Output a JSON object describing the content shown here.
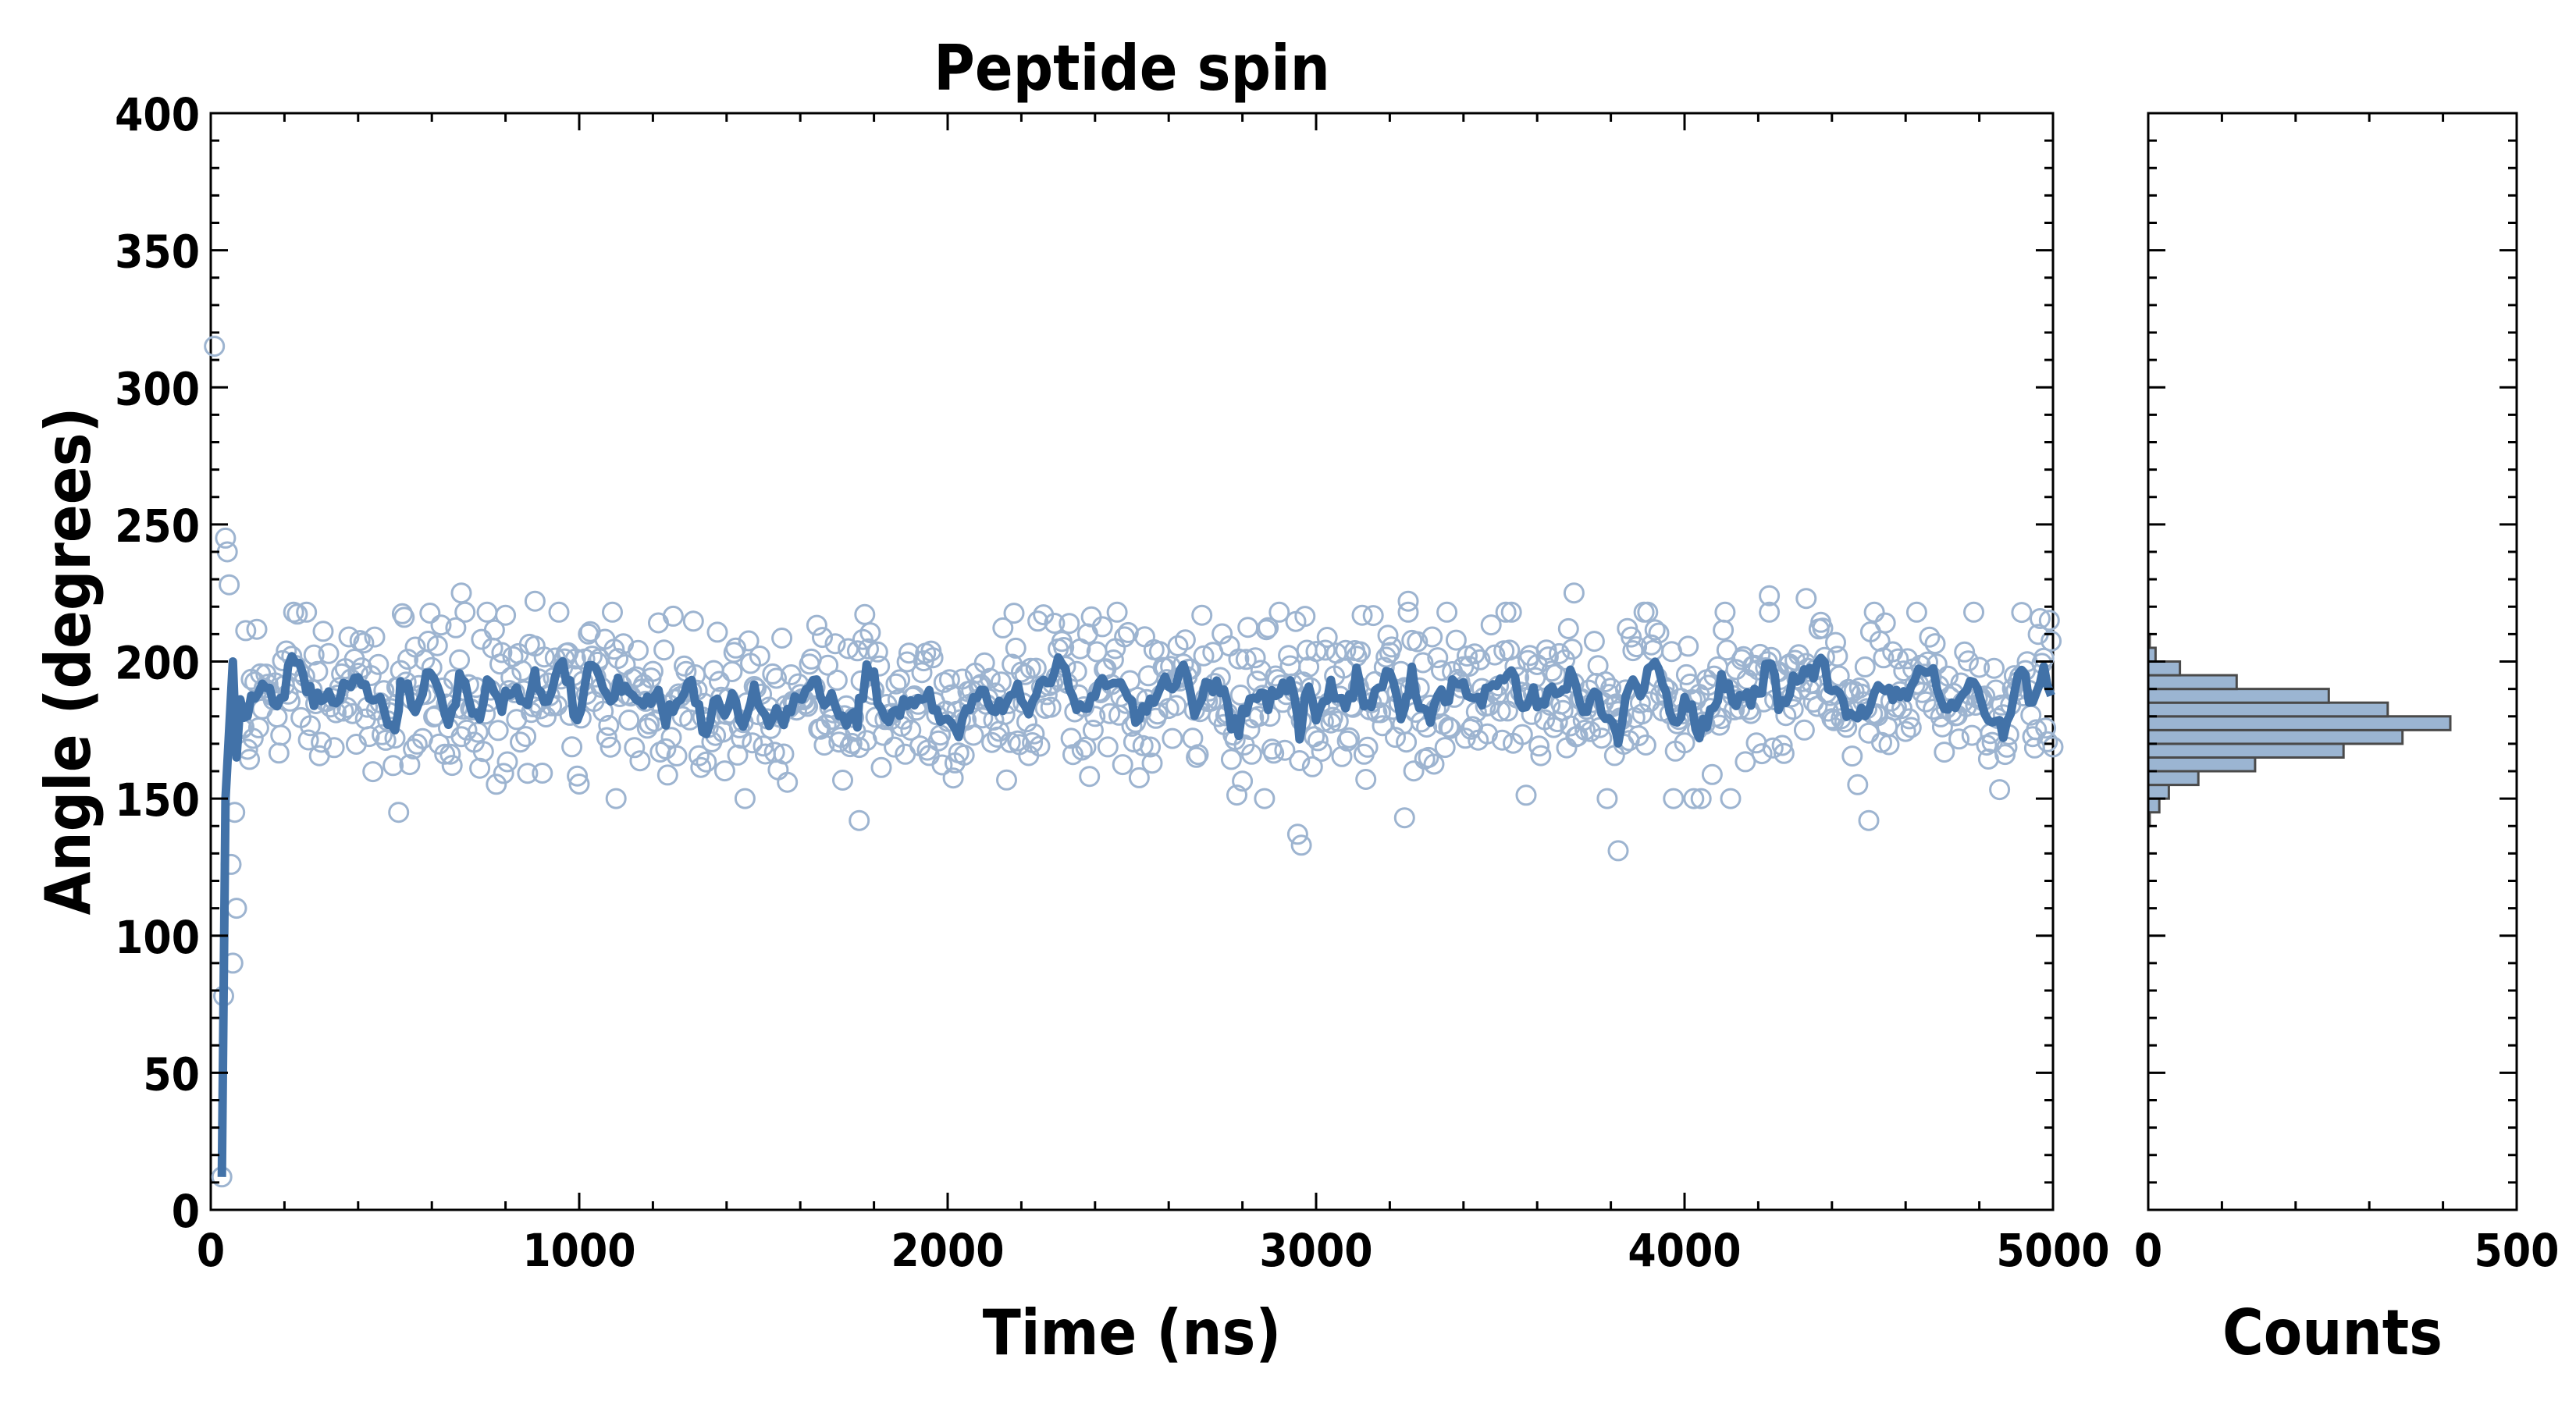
{
  "colors": {
    "accent": "#4272a8",
    "scatter": "#9db4d0",
    "hist_fill": "#9bb5d2",
    "hist_edge": "#4a4a4a"
  },
  "chart_data": [
    {
      "type": "scatter",
      "title": "Peptide spin",
      "xlabel": "Time (ns)",
      "ylabel": "Angle (degrees)",
      "xlim": [
        0,
        5000
      ],
      "ylim": [
        0,
        400
      ],
      "x_ticks": [
        "0",
        "1000",
        "2000",
        "3000",
        "4000",
        "5000"
      ],
      "y_ticks": [
        "0",
        "50",
        "100",
        "150",
        "200",
        "250",
        "300",
        "350",
        "400"
      ],
      "grid": false,
      "description_series": [
        {
          "kind": "scatter",
          "marker": "open-circle",
          "summary": {
            "mean": 187,
            "spread": 15,
            "x_step": 5,
            "x_range": [
              0,
              5000
            ]
          }
        },
        {
          "kind": "line",
          "smoothed": true
        }
      ],
      "initial_points": [
        {
          "x": 10,
          "y": 315
        },
        {
          "x": 30,
          "y": 12
        },
        {
          "x": 35,
          "y": 78
        },
        {
          "x": 40,
          "y": 245
        },
        {
          "x": 45,
          "y": 240
        },
        {
          "x": 50,
          "y": 228
        },
        {
          "x": 55,
          "y": 126
        },
        {
          "x": 60,
          "y": 90
        },
        {
          "x": 65,
          "y": 145
        },
        {
          "x": 70,
          "y": 110
        }
      ],
      "outliers": [
        {
          "x": 510,
          "y": 145
        },
        {
          "x": 680,
          "y": 225
        },
        {
          "x": 880,
          "y": 222
        },
        {
          "x": 1760,
          "y": 142
        },
        {
          "x": 2950,
          "y": 137
        },
        {
          "x": 2960,
          "y": 133
        },
        {
          "x": 3250,
          "y": 222
        },
        {
          "x": 3240,
          "y": 143
        },
        {
          "x": 3700,
          "y": 225
        },
        {
          "x": 3820,
          "y": 131
        },
        {
          "x": 4230,
          "y": 224
        },
        {
          "x": 4330,
          "y": 223
        },
        {
          "x": 4500,
          "y": 142
        }
      ]
    },
    {
      "type": "bar",
      "orientation": "horizontal",
      "xlabel": "Counts",
      "xlim": [
        0,
        500
      ],
      "x_ticks": [
        "0",
        "500"
      ],
      "bins": [
        {
          "y0": 140,
          "y1": 145,
          "count": 2
        },
        {
          "y0": 145,
          "y1": 150,
          "count": 15
        },
        {
          "y0": 150,
          "y1": 155,
          "count": 28
        },
        {
          "y0": 155,
          "y1": 160,
          "count": 68
        },
        {
          "y0": 160,
          "y1": 165,
          "count": 145
        },
        {
          "y0": 165,
          "y1": 170,
          "count": 265
        },
        {
          "y0": 170,
          "y1": 175,
          "count": 345
        },
        {
          "y0": 175,
          "y1": 180,
          "count": 410
        },
        {
          "y0": 180,
          "y1": 185,
          "count": 325
        },
        {
          "y0": 185,
          "y1": 190,
          "count": 245
        },
        {
          "y0": 190,
          "y1": 195,
          "count": 120
        },
        {
          "y0": 195,
          "y1": 200,
          "count": 43
        },
        {
          "y0": 200,
          "y1": 205,
          "count": 10
        },
        {
          "y0": 205,
          "y1": 210,
          "count": 2
        }
      ]
    }
  ]
}
